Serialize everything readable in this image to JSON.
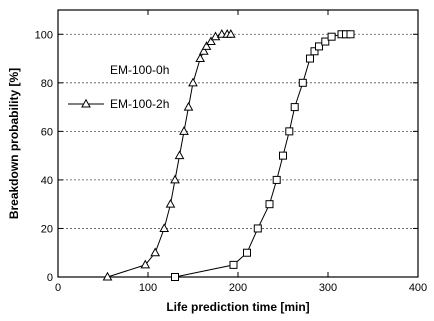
{
  "chart_data": {
    "type": "line",
    "title": "",
    "xlabel": "Life prediction time [min]",
    "ylabel": "Breakdown probability [%]",
    "xlim": [
      0,
      400
    ],
    "ylim": [
      0,
      110
    ],
    "xticks": [
      0,
      100,
      200,
      300,
      400
    ],
    "yticks": [
      0,
      20,
      40,
      60,
      80,
      100
    ],
    "grid": "horizontal dashed at y ticks",
    "legend_position": "upper-left",
    "series": [
      {
        "name": "EM-100-0h",
        "marker": "square",
        "points": [
          [
            130,
            0
          ],
          [
            195,
            5
          ],
          [
            210,
            10
          ],
          [
            222,
            20
          ],
          [
            235,
            30
          ],
          [
            243,
            40
          ],
          [
            250,
            50
          ],
          [
            257,
            60
          ],
          [
            263,
            70
          ],
          [
            272,
            80
          ],
          [
            280,
            90
          ],
          [
            285,
            93
          ],
          [
            290,
            95
          ],
          [
            297,
            97
          ],
          [
            304,
            99
          ],
          [
            315,
            100
          ],
          [
            320,
            100
          ],
          [
            325,
            100
          ]
        ]
      },
      {
        "name": "EM-100-2h",
        "marker": "triangle",
        "points": [
          [
            55,
            0
          ],
          [
            97,
            5
          ],
          [
            108,
            10
          ],
          [
            118,
            20
          ],
          [
            125,
            30
          ],
          [
            130,
            40
          ],
          [
            135,
            50
          ],
          [
            140,
            60
          ],
          [
            145,
            70
          ],
          [
            150,
            80
          ],
          [
            158,
            90
          ],
          [
            162,
            93
          ],
          [
            165,
            95
          ],
          [
            170,
            97
          ],
          [
            175,
            99
          ],
          [
            182,
            100
          ],
          [
            188,
            100
          ],
          [
            192,
            100
          ]
        ]
      }
    ]
  }
}
